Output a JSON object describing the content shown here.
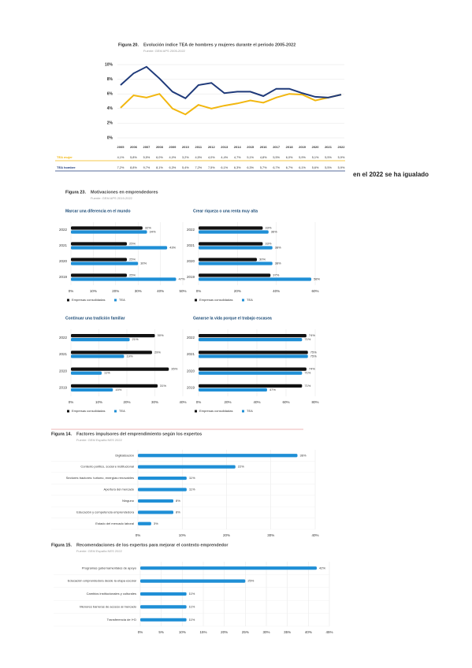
{
  "chart_data": [
    {
      "type": "line",
      "figure_label": "Figura 20.",
      "title": "Evolución índice TEA de hombres y mujeres durante el periodo 2005-2022",
      "source": "Fuente: GEM APS 2005-2022",
      "categories": [
        "2005",
        "2006",
        "2007",
        "2008",
        "2009",
        "2010",
        "2011",
        "2012",
        "2013",
        "2014",
        "2015",
        "2016",
        "2017",
        "2018",
        "2019",
        "2020",
        "2021",
        "2022"
      ],
      "ylim": [
        0,
        10
      ],
      "yticks": [
        {
          "value": 0,
          "label": "0%"
        },
        {
          "value": 2,
          "label": "2%"
        },
        {
          "value": 4,
          "label": "4%"
        },
        {
          "value": 6,
          "label": "6%"
        },
        {
          "value": 8,
          "label": "8%"
        },
        {
          "value": 10,
          "label": "10%"
        }
      ],
      "series": [
        {
          "name": "TEA mujer",
          "color": "#f2b70f",
          "values": [
            4.1,
            5.8,
            5.5,
            6.0,
            4.0,
            3.2,
            4.5,
            4.0,
            4.4,
            4.7,
            5.1,
            4.8,
            5.5,
            6.0,
            5.9,
            5.1,
            5.5,
            5.9
          ],
          "value_labels": [
            "4,1%",
            "5,8%",
            "5,5%",
            "6,0%",
            "4,0%",
            "3,2%",
            "4,5%",
            "4,0%",
            "4,4%",
            "4,7%",
            "5,1%",
            "4,8%",
            "5,5%",
            "6,0%",
            "5,9%",
            "5,1%",
            "5,5%",
            "5,9%"
          ]
        },
        {
          "name": "TEA hombre",
          "color": "#1f3a7a",
          "values": [
            7.2,
            8.8,
            9.7,
            8.1,
            6.3,
            5.4,
            7.2,
            7.5,
            6.1,
            6.3,
            6.3,
            5.7,
            6.7,
            6.7,
            6.1,
            5.6,
            5.5,
            5.9
          ],
          "value_labels": [
            "7,2%",
            "8,8%",
            "9,7%",
            "8,1%",
            "6,3%",
            "5,4%",
            "7,2%",
            "7,5%",
            "6,1%",
            "6,3%",
            "6,3%",
            "5,7%",
            "6,7%",
            "6,7%",
            "6,1%",
            "5,6%",
            "5,5%",
            "5,9%"
          ]
        }
      ]
    },
    {
      "type": "bar",
      "title": "Marcar una diferencia en el mundo",
      "categories": [
        "2022",
        "2021",
        "2020",
        "2019"
      ],
      "xlim": [
        0,
        50
      ],
      "xticks": [
        {
          "value": 0,
          "label": "0%"
        },
        {
          "value": 10,
          "label": "10%"
        },
        {
          "value": 20,
          "label": "20%"
        },
        {
          "value": 30,
          "label": "30%"
        },
        {
          "value": 40,
          "label": "40%"
        },
        {
          "value": 50,
          "label": "50%"
        }
      ],
      "series": [
        {
          "name": "Empresas consolidadas",
          "color": "#111111",
          "values": [
            32,
            25,
            25,
            25
          ],
          "value_labels": [
            "32%",
            "25%",
            "25%",
            "25%"
          ]
        },
        {
          "name": "TEA",
          "color": "#1f8fd6",
          "values": [
            34,
            43,
            30,
            47
          ],
          "value_labels": [
            "34%",
            "43%",
            "30%",
            "47%"
          ]
        }
      ]
    },
    {
      "type": "bar",
      "title": "Crear riqueza o una renta muy alta",
      "categories": [
        "2022",
        "2021",
        "2020",
        "2019"
      ],
      "xlim": [
        0,
        60
      ],
      "xticks": [
        {
          "value": 0,
          "label": "0%"
        },
        {
          "value": 20,
          "label": "20%"
        },
        {
          "value": 40,
          "label": "40%"
        },
        {
          "value": 60,
          "label": "60%"
        }
      ],
      "series": [
        {
          "name": "Empresas consolidadas",
          "color": "#111111",
          "values": [
            33,
            33,
            30,
            37
          ],
          "value_labels": [
            "33%",
            "33%",
            "30%",
            "37%"
          ]
        },
        {
          "name": "TEA",
          "color": "#1f8fd6",
          "values": [
            36,
            38,
            38,
            58
          ],
          "value_labels": [
            "36%",
            "38%",
            "38%",
            "58%"
          ]
        }
      ]
    },
    {
      "type": "bar",
      "title": "Continuar una tradición familiar",
      "categories": [
        "2022",
        "2021",
        "2020",
        "2019"
      ],
      "xlim": [
        0,
        40
      ],
      "xticks": [
        {
          "value": 0,
          "label": "0%"
        },
        {
          "value": 10,
          "label": "10%"
        },
        {
          "value": 20,
          "label": "20%"
        },
        {
          "value": 30,
          "label": "30%"
        },
        {
          "value": 40,
          "label": "40%"
        }
      ],
      "series": [
        {
          "name": "Empresas consolidadas",
          "color": "#111111",
          "values": [
            30,
            29,
            35,
            31
          ],
          "value_labels": [
            "30%",
            "29%",
            "35%",
            "31%"
          ]
        },
        {
          "name": "TEA",
          "color": "#1f8fd6",
          "values": [
            21,
            19,
            11,
            15
          ],
          "value_labels": [
            "21%",
            "19%",
            "11%",
            "15%"
          ]
        }
      ]
    },
    {
      "type": "bar",
      "title": "Ganarse la vida porque el trabajo escasea",
      "categories": [
        "2022",
        "2021",
        "2020",
        "2019"
      ],
      "xlim": [
        0,
        80
      ],
      "xticks": [
        {
          "value": 0,
          "label": "0%"
        },
        {
          "value": 20,
          "label": "20%"
        },
        {
          "value": 40,
          "label": "40%"
        },
        {
          "value": 60,
          "label": "60%"
        },
        {
          "value": 80,
          "label": "80%"
        }
      ],
      "series": [
        {
          "name": "Empresas consolidadas",
          "color": "#111111",
          "values": [
            74,
            75,
            74,
            71
          ],
          "value_labels": [
            "74%",
            "75%",
            "74%",
            "71%"
          ]
        },
        {
          "name": "TEA",
          "color": "#1f8fd6",
          "values": [
            71,
            75,
            71,
            47
          ],
          "value_labels": [
            "71%",
            "75%",
            "71%",
            "47%"
          ]
        }
      ]
    },
    {
      "type": "bar",
      "figure_label": "Figura 14.",
      "title": "Factores impulsores del emprendimiento según los expertos",
      "source": "Fuente: GEM España NES 2022",
      "categories": [
        "Digitalización",
        "Contexto político, social e institucional",
        "Sectores tractores: turismo, energías renovables",
        "Apertura del mercado",
        "Ninguno",
        "Educación y competencia emprendedora",
        "Estado del mercado laboral"
      ],
      "values": [
        36,
        22,
        11,
        11,
        8,
        8,
        3
      ],
      "value_labels": [
        "36%",
        "22%",
        "11%",
        "11%",
        "8%",
        "8%",
        "3%"
      ],
      "color": "#1f8fd6",
      "xlim": [
        0,
        40
      ],
      "xticks": [
        {
          "value": 0,
          "label": "0%"
        },
        {
          "value": 10,
          "label": "10%"
        },
        {
          "value": 20,
          "label": "20%"
        },
        {
          "value": 30,
          "label": "30%"
        },
        {
          "value": 40,
          "label": "40%"
        }
      ]
    },
    {
      "type": "bar",
      "figure_label": "Figura 15.",
      "title": "Recomendaciones de los expertos para mejorar el contexto emprendedor",
      "source": "Fuente: GEM España NES 2022",
      "categories": [
        "Programas gubernamentales de apoyo",
        "Educación emprendedora desde la etapa escolar",
        "Cambios institucionales y culturales",
        "Menores barreras de acceso al mercado",
        "Transferencia de I+D"
      ],
      "values": [
        42,
        25,
        11,
        11,
        11
      ],
      "value_labels": [
        "42%",
        "25%",
        "11%",
        "11%",
        "11%"
      ],
      "color": "#1f8fd6",
      "xlim": [
        0,
        45
      ],
      "xticks": [
        {
          "value": 0,
          "label": "0%"
        },
        {
          "value": 5,
          "label": "5%"
        },
        {
          "value": 10,
          "label": "10%"
        },
        {
          "value": 15,
          "label": "15%"
        },
        {
          "value": 20,
          "label": "20%"
        },
        {
          "value": 25,
          "label": "25%"
        },
        {
          "value": 30,
          "label": "30%"
        },
        {
          "value": 35,
          "label": "35%"
        },
        {
          "value": 40,
          "label": "40%"
        },
        {
          "value": 45,
          "label": "45%"
        }
      ]
    }
  ],
  "figure_23": {
    "label": "Figura 23.",
    "title": "Motivaciones en emprendedores",
    "source": "Fuente: GEM APS 2019-2022"
  },
  "side_note": "en el 2022 se ha igualado"
}
